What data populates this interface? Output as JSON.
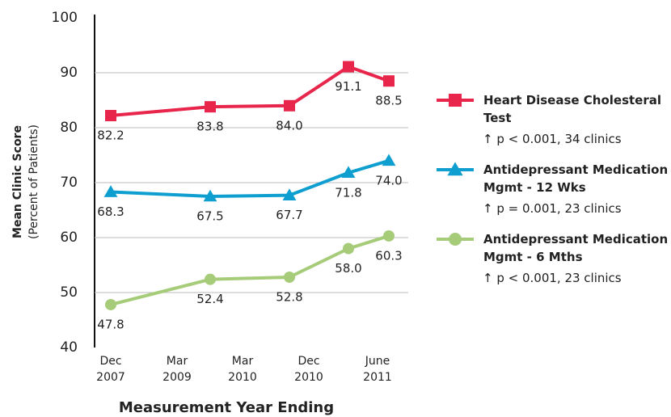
{
  "chart_data": {
    "type": "line",
    "x_label": "Measurement Year Ending",
    "y_label": "Mean Clinic Score",
    "y_sublabel": "(Percent of Patients)",
    "categories": [
      "Dec 2007",
      "Mar 2009",
      "Mar 2010",
      "Dec 2010",
      "June 2011"
    ],
    "ylim": [
      40,
      100
    ],
    "yticks": [
      40,
      50,
      60,
      70,
      80,
      90,
      100
    ],
    "grid": true,
    "series": [
      {
        "name": "Heart Disease Cholesteral Test",
        "note": "↑ p < 0.001, 34 clinics",
        "color": "#e8254a",
        "marker": "square",
        "values": [
          82.2,
          83.8,
          84.0,
          91.1,
          88.5
        ],
        "value_labels": [
          "82.2",
          "83.8",
          "84.0",
          "91.1",
          "88.5"
        ]
      },
      {
        "name": "Antidepressant Medication Mgmt - 12 Wks",
        "note": "↑ p = 0.001, 23 clinics",
        "color": "#0e9fd0",
        "marker": "triangle",
        "values": [
          68.3,
          67.5,
          67.7,
          71.8,
          74.0
        ],
        "value_labels": [
          "68.3",
          "67.5",
          "67.7",
          "71.8",
          "74.0"
        ]
      },
      {
        "name": "Antidepressant Medication Mgmt - 6 Mths",
        "note": "↑ p < 0.001, 23 clinics",
        "color": "#a6cc7a",
        "marker": "circle",
        "values": [
          47.8,
          52.4,
          52.8,
          58.0,
          60.3
        ],
        "value_labels": [
          "47.8",
          "52.4",
          "52.8",
          "58.0",
          "60.3"
        ]
      }
    ]
  }
}
